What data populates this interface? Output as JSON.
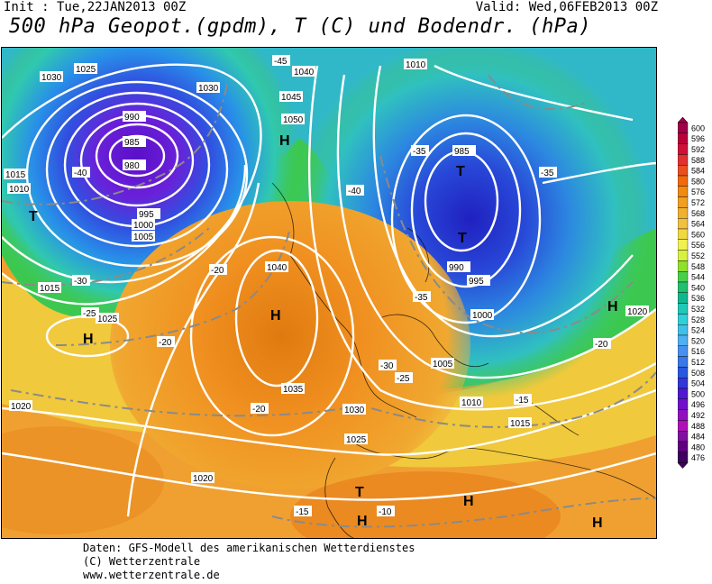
{
  "header": {
    "init": "Init : Tue,22JAN2013 00Z",
    "valid": "Valid: Wed,06FEB2013 00Z",
    "title": "500 hPa Geopot.(gpdm), T (C) und Bodendr. (hPa)"
  },
  "footer": {
    "line1": "Daten: GFS-Modell des amerikanischen Wetterdienstes",
    "line2": "(C) Wetterzentrale",
    "line3": "www.wetterzentrale.de"
  },
  "colorbar": {
    "levels": [
      "600",
      "596",
      "592",
      "588",
      "584",
      "580",
      "576",
      "572",
      "568",
      "564",
      "560",
      "556",
      "552",
      "548",
      "544",
      "540",
      "536",
      "532",
      "528",
      "524",
      "520",
      "516",
      "512",
      "508",
      "504",
      "500",
      "496",
      "492",
      "488",
      "484",
      "480",
      "476"
    ],
    "colors": [
      "#a0004a",
      "#b8003a",
      "#d0103a",
      "#e03030",
      "#e85020",
      "#f06a10",
      "#f08a10",
      "#f0a020",
      "#f0b030",
      "#f0c040",
      "#f0d840",
      "#f0f050",
      "#d8f040",
      "#90e030",
      "#48d048",
      "#20c070",
      "#10b890",
      "#20c8b8",
      "#30d0d8",
      "#40c0e8",
      "#50b0f0",
      "#4890f0",
      "#3878e8",
      "#2858e0",
      "#3038d8",
      "#5018d0",
      "#7010c8",
      "#9010c0",
      "#b010b8",
      "#8010a0",
      "#600080",
      "#400060"
    ]
  },
  "map": {
    "pressure_labels": [
      "1030",
      "1025",
      "1015",
      "1010",
      "1005",
      "1000",
      "995",
      "990",
      "985",
      "980",
      "1040",
      "1045",
      "1050",
      "1035",
      "1020",
      "1030",
      "1025",
      "1015",
      "1010",
      "1005",
      "1000",
      "995",
      "990",
      "985",
      "1040",
      "1020",
      "1015",
      "1010",
      "1025",
      "1020",
      "1030"
    ],
    "temp_labels": [
      "-40",
      "-35",
      "-30",
      "-25",
      "-20",
      "-15",
      "-10",
      "-45"
    ],
    "centers": [
      "H",
      "T",
      "H",
      "H",
      "T",
      "T",
      "H",
      "T",
      "H",
      "H",
      "H"
    ]
  }
}
